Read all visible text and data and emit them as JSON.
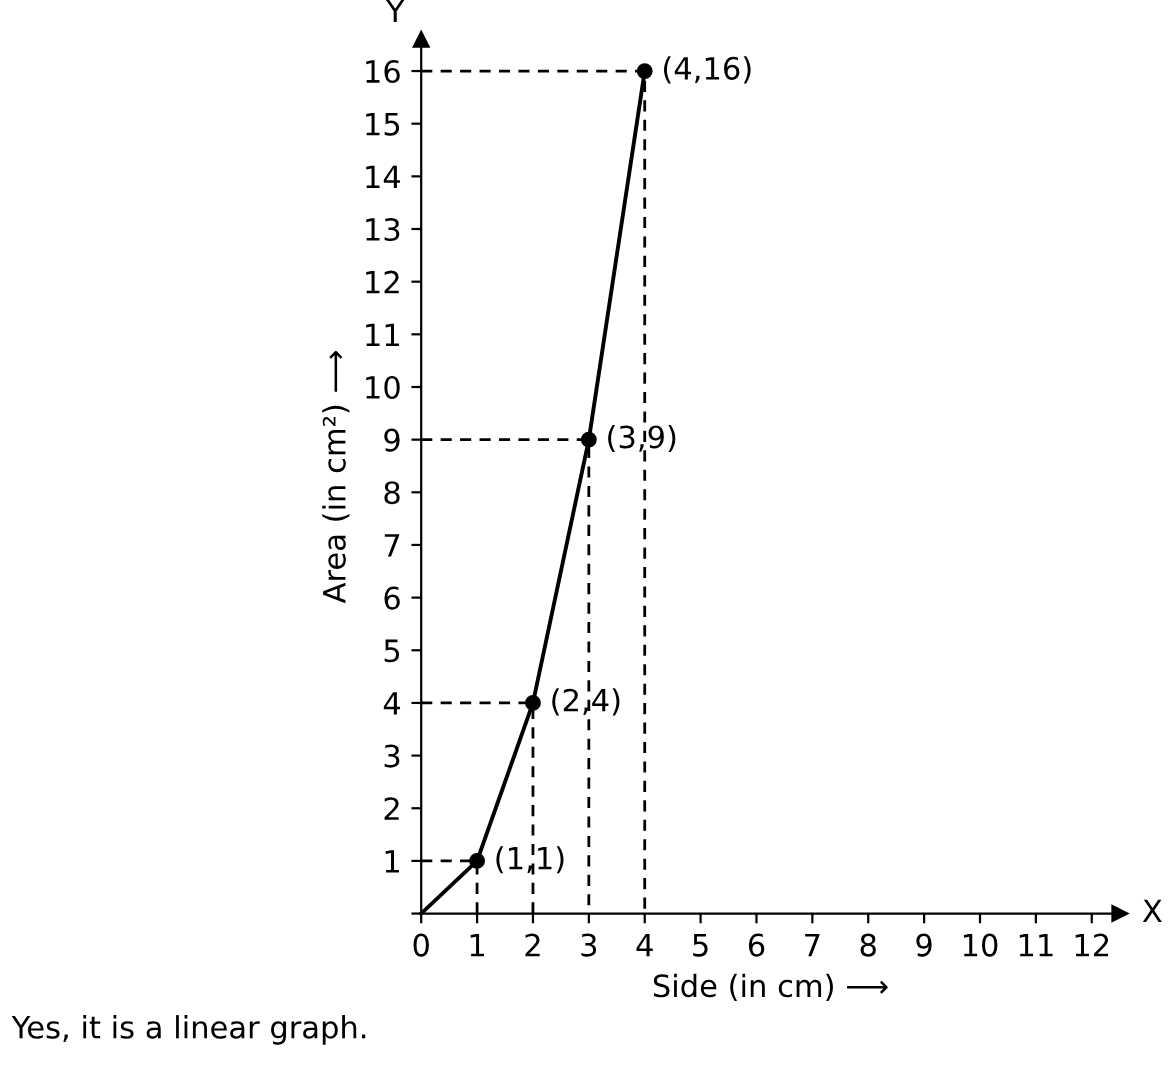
{
  "chart_data": {
    "type": "line",
    "xlabel": "Side (in cm) ⟶",
    "ylabel": "Area (in cm²) ⟶",
    "series": [
      {
        "color": "#000000",
        "x": [
          0,
          1,
          2,
          3,
          4
        ],
        "values": [
          0,
          1,
          4,
          9,
          16
        ],
        "marker": "none",
        "line_style": "solid"
      },
      {
        "type": "scatter",
        "color": "#000000",
        "x": [
          1,
          2,
          3,
          4
        ],
        "values": [
          1,
          4,
          9,
          16
        ],
        "marker": "circle"
      },
      {
        "type": "line",
        "color": "#000000",
        "x": [
          0,
          1,
          1
        ],
        "values": [
          1,
          1,
          0
        ],
        "line_style": "dashed",
        "marker": "none"
      },
      {
        "type": "line",
        "color": "#000000",
        "x": [
          0,
          2,
          2
        ],
        "values": [
          4,
          4,
          0
        ],
        "line_style": "dashed",
        "marker": "none"
      },
      {
        "type": "line",
        "color": "#000000",
        "x": [
          0,
          3,
          3
        ],
        "values": [
          9,
          9,
          0
        ],
        "line_style": "dashed",
        "marker": "none"
      },
      {
        "type": "line",
        "color": "#000000",
        "x": [
          0,
          4,
          4
        ],
        "values": [
          16,
          16,
          0
        ],
        "line_style": "dashed",
        "marker": "none"
      }
    ],
    "xlim": [
      0,
      12.5
    ],
    "ylim": [
      0,
      16.6
    ],
    "xticks": [
      0,
      1,
      2,
      3,
      4,
      5,
      6,
      7,
      8,
      9,
      10,
      11,
      12
    ],
    "yticks": [
      {
        "value": 0,
        "label": null
      },
      1,
      2,
      3,
      4,
      5,
      6,
      7,
      8,
      9,
      10,
      11,
      12,
      13,
      14,
      15,
      16
    ],
    "grid": false,
    "annotations": [
      {
        "text": "(1,1)",
        "x": 1,
        "y": 1
      },
      {
        "text": "(2,4)",
        "x": 2,
        "y": 4
      },
      {
        "text": "(3,9)",
        "x": 3,
        "y": 9
      },
      {
        "text": "(4,16)",
        "x": 4,
        "y": 16
      },
      {
        "text": "X",
        "x": 12.5,
        "y": 0
      },
      {
        "text": "Y",
        "x": 0,
        "y": 16.6
      },
      "Yes, it is a linear graph."
    ]
  }
}
